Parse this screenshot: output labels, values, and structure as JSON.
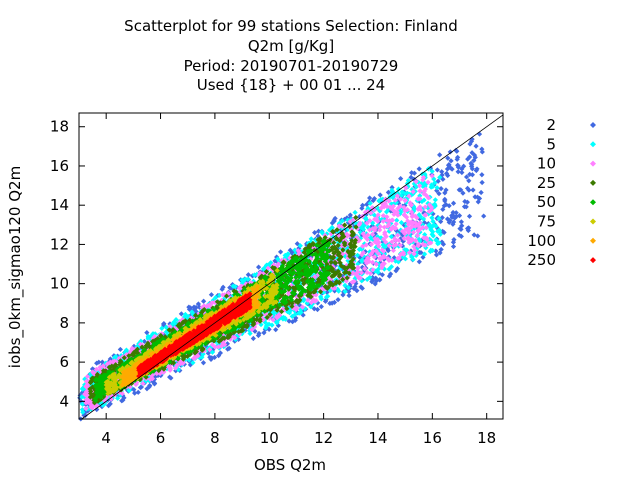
{
  "chart_data": {
    "type": "scatter",
    "title": [
      "Scatterplot for   99 stations Selection: Finland",
      "Q2m [g/Kg]",
      "Period: 20190701-20190729",
      "Used {18} + 00 01 ... 24"
    ],
    "xlabel": "OBS Q2m",
    "ylabel": "iobs_0km_sigmao120 Q2m",
    "xlim": [
      3,
      18.6
    ],
    "ylim": [
      3.1,
      18.7
    ],
    "xticks": [
      4,
      6,
      8,
      10,
      12,
      14,
      16,
      18
    ],
    "yticks": [
      4,
      6,
      8,
      10,
      12,
      14,
      16,
      18
    ],
    "diagonal": true,
    "grid": false,
    "legend_position": "right",
    "density_levels": [
      {
        "label": "2",
        "color": "#4169e1"
      },
      {
        "label": "5",
        "color": "#00ffff"
      },
      {
        "label": "10",
        "color": "#ff80ff"
      },
      {
        "label": "25",
        "color": "#3c7a00"
      },
      {
        "label": "50",
        "color": "#00bb00"
      },
      {
        "label": "75",
        "color": "#cccc00"
      },
      {
        "label": "100",
        "color": "#ffaa00"
      },
      {
        "label": "250",
        "color": "#ff0000"
      }
    ],
    "bands": [
      {
        "level": "2",
        "x_range": [
          3.0,
          17.9
        ],
        "y_center_slope": 0.74,
        "y_center_intercept": 2.0,
        "halfwidth": [
          1.2,
          2.7
        ]
      },
      {
        "level": "5",
        "x_range": [
          3.1,
          16.3
        ],
        "y_center_slope": 0.74,
        "y_center_intercept": 2.0,
        "halfwidth": [
          1.0,
          2.2
        ]
      },
      {
        "level": "10",
        "x_range": [
          3.2,
          16.0
        ],
        "y_center_slope": 0.74,
        "y_center_intercept": 2.0,
        "halfwidth": [
          0.9,
          1.9
        ]
      },
      {
        "level": "25",
        "x_range": [
          3.4,
          13.2
        ],
        "y_center_slope": 0.76,
        "y_center_intercept": 1.9,
        "halfwidth": [
          0.7,
          1.5
        ]
      },
      {
        "level": "50",
        "x_range": [
          3.6,
          12.2
        ],
        "y_center_slope": 0.78,
        "y_center_intercept": 1.75,
        "halfwidth": [
          0.55,
          1.1
        ]
      },
      {
        "level": "75",
        "x_range": [
          4.0,
          10.3
        ],
        "y_center_slope": 0.82,
        "y_center_intercept": 1.45,
        "halfwidth": [
          0.45,
          0.8
        ]
      },
      {
        "level": "100",
        "x_range": [
          4.6,
          9.6
        ],
        "y_center_slope": 0.85,
        "y_center_intercept": 1.2,
        "halfwidth": [
          0.35,
          0.55
        ]
      },
      {
        "level": "250",
        "x_range": [
          5.2,
          9.3
        ],
        "y_center_slope": 0.88,
        "y_center_intercept": 0.95,
        "halfwidth": [
          0.25,
          0.4
        ]
      }
    ]
  }
}
